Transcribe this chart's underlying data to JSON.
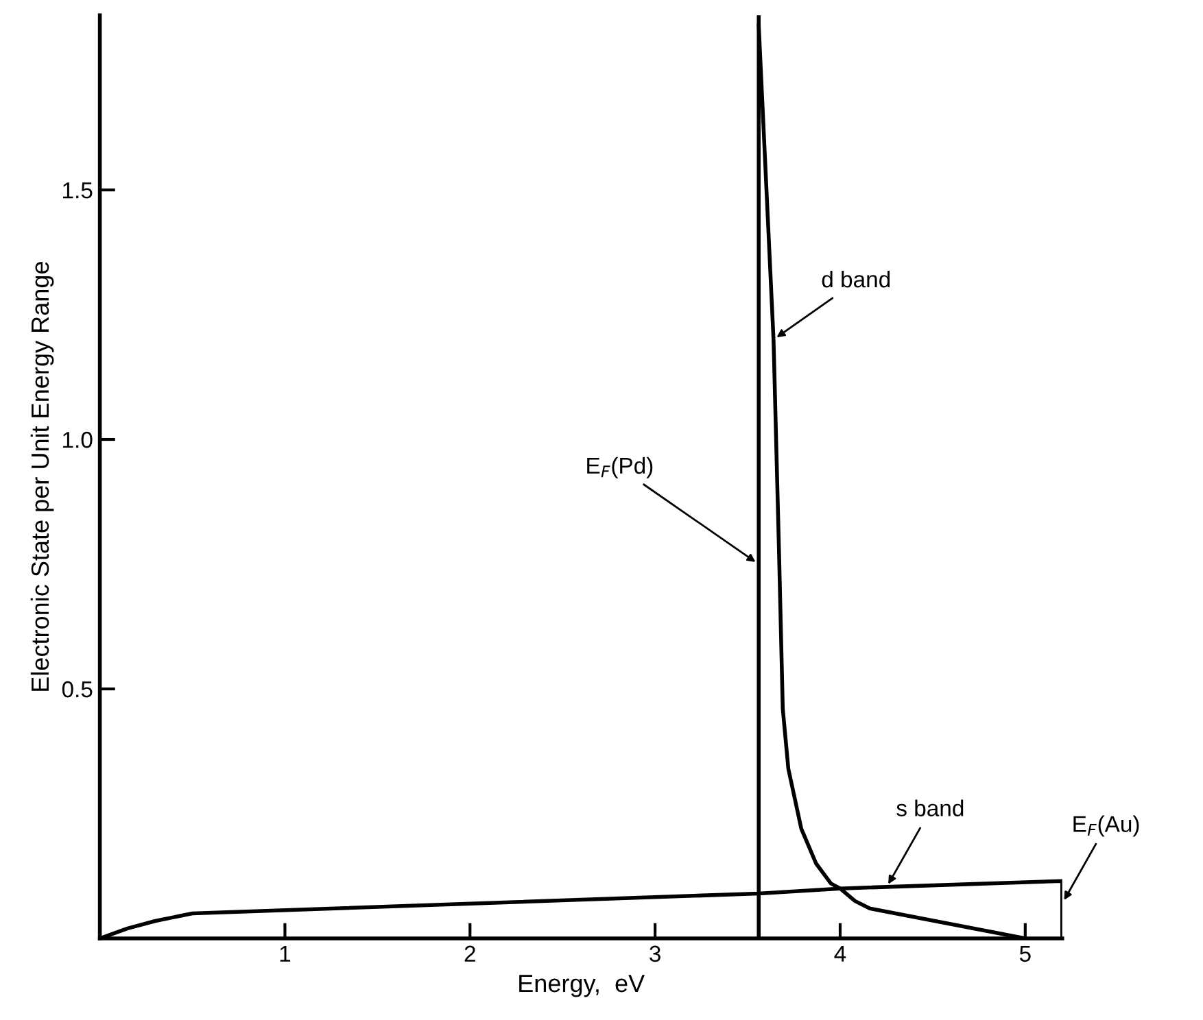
{
  "chart_data": {
    "type": "line",
    "xlabel": "Energy,  eV",
    "ylabel": "Electronic State per Unit Energy Range",
    "xlim": [
      0,
      5.2
    ],
    "ylim": [
      0,
      1.85
    ],
    "xticks": [
      1,
      2,
      3,
      4,
      5
    ],
    "yticks": [
      {
        "value": 0.5,
        "label": "0.5"
      },
      {
        "value": 1.0,
        "label": "1.0"
      },
      {
        "value": 1.5,
        "label": "1.5"
      }
    ],
    "grid": false,
    "legend": false,
    "marker": "none",
    "line_style": "solid",
    "series": [
      {
        "color": "#000000",
        "x": [
          0,
          0.15,
          0.3,
          0.5,
          3.56,
          4.0,
          5.2,
          5.2
        ],
        "values": [
          0,
          0.02,
          0.035,
          0.05,
          0.09,
          0.1,
          0.115,
          0
        ]
      },
      {
        "color": "#000000",
        "x": [
          3.56,
          3.64,
          3.67,
          3.69,
          3.72,
          3.79,
          3.87,
          3.95,
          4.0,
          4.08,
          4.16,
          5.0
        ],
        "values": [
          1.83,
          1.2,
          0.77,
          0.46,
          0.34,
          0.22,
          0.15,
          0.11,
          0.1,
          0.075,
          0.06,
          0
        ]
      }
    ],
    "ref_lines": [
      {
        "axis": "x",
        "value": 3.56,
        "color": "#000000"
      }
    ],
    "annotations": [
      {
        "text": "d band",
        "x": 3.64,
        "y": 1.2
      },
      {
        "text": "E$_{F}$(Pd)",
        "x": 3.56,
        "y": 0.75
      },
      {
        "text": "s band",
        "x": 4.25,
        "y": 0.102
      },
      {
        "text": "E$_{F}$(Au)",
        "x": 5.2,
        "y": 0.07
      }
    ]
  }
}
